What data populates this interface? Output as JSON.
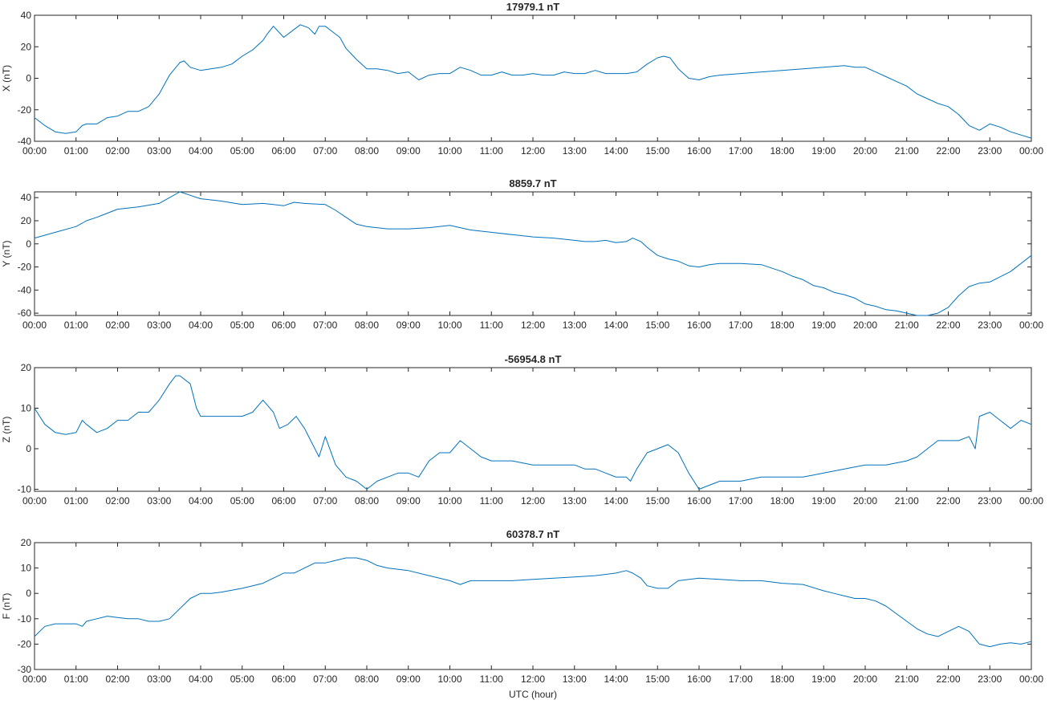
{
  "chart_data": [
    {
      "type": "line",
      "title": "17979.1 nT",
      "ylabel": "X (nT)",
      "xlabel": "",
      "ylim": [
        -40,
        40
      ],
      "yticks": [
        -40,
        -20,
        0,
        20,
        40
      ],
      "xlim": [
        0,
        24
      ],
      "xtick_labels": [
        "00:00",
        "01:00",
        "02:00",
        "03:00",
        "04:00",
        "05:00",
        "06:00",
        "07:00",
        "08:00",
        "09:00",
        "10:00",
        "11:00",
        "12:00",
        "13:00",
        "14:00",
        "15:00",
        "16:00",
        "17:00",
        "18:00",
        "19:00",
        "20:00",
        "21:00",
        "22:00",
        "23:00",
        "00:00"
      ],
      "grid": false,
      "series": [
        {
          "color": "#0072BD",
          "x": [
            0,
            0.25,
            0.5,
            0.75,
            1.0,
            1.15,
            1.25,
            1.5,
            1.75,
            2.0,
            2.25,
            2.5,
            2.75,
            3.0,
            3.25,
            3.5,
            3.6,
            3.75,
            4.0,
            4.25,
            4.5,
            4.75,
            5.0,
            5.25,
            5.5,
            5.6,
            5.75,
            6.0,
            6.25,
            6.4,
            6.6,
            6.75,
            6.85,
            7.0,
            7.15,
            7.35,
            7.5,
            7.75,
            8.0,
            8.25,
            8.5,
            8.75,
            9.0,
            9.25,
            9.5,
            9.75,
            10.0,
            10.25,
            10.5,
            10.75,
            11.0,
            11.25,
            11.5,
            11.75,
            12.0,
            12.25,
            12.5,
            12.75,
            13.0,
            13.25,
            13.5,
            13.75,
            14.0,
            14.25,
            14.5,
            14.75,
            15.0,
            15.15,
            15.3,
            15.5,
            15.75,
            16.0,
            16.25,
            16.5,
            17.0,
            17.5,
            18.0,
            18.5,
            19.0,
            19.5,
            19.75,
            20.0,
            20.25,
            20.5,
            20.75,
            21.0,
            21.25,
            21.5,
            21.75,
            22.0,
            22.25,
            22.5,
            22.75,
            23.0,
            23.25,
            23.5,
            23.75,
            24.0
          ],
          "values": [
            -25,
            -30,
            -34,
            -35,
            -34,
            -30,
            -29,
            -29,
            -25,
            -24,
            -21,
            -21,
            -18,
            -10,
            2,
            10,
            11,
            7,
            5,
            6,
            7,
            9,
            14,
            18,
            24,
            28,
            33,
            26,
            31,
            34,
            32,
            28,
            33,
            33,
            30,
            26,
            19,
            12,
            6,
            6,
            5,
            3,
            4,
            -1,
            2,
            3,
            3,
            7,
            5,
            2,
            2,
            4,
            2,
            2,
            3,
            2,
            2,
            4,
            3,
            3,
            5,
            3,
            3,
            3,
            4,
            9,
            13,
            14,
            13,
            6,
            0,
            -1,
            1,
            2,
            3,
            4,
            5,
            6,
            7,
            8,
            7,
            7,
            4,
            1,
            -2,
            -5,
            -10,
            -13,
            -16,
            -18,
            -23,
            -30,
            -33,
            -29,
            -31,
            -34,
            -36,
            -38
          ]
        }
      ]
    },
    {
      "type": "line",
      "title": "8859.7 nT",
      "ylabel": "Y (nT)",
      "xlabel": "",
      "ylim": [
        -62,
        45
      ],
      "yticks": [
        -60,
        -40,
        -20,
        0,
        20,
        40
      ],
      "xlim": [
        0,
        24
      ],
      "xtick_labels": [
        "00:00",
        "01:00",
        "02:00",
        "03:00",
        "04:00",
        "05:00",
        "06:00",
        "07:00",
        "08:00",
        "09:00",
        "10:00",
        "11:00",
        "12:00",
        "13:00",
        "14:00",
        "15:00",
        "16:00",
        "17:00",
        "18:00",
        "19:00",
        "20:00",
        "21:00",
        "22:00",
        "23:00",
        "00:00"
      ],
      "grid": false,
      "series": [
        {
          "color": "#0072BD",
          "x": [
            0,
            0.5,
            1.0,
            1.25,
            1.5,
            2.0,
            2.5,
            3.0,
            3.25,
            3.5,
            3.75,
            4.0,
            4.5,
            5.0,
            5.5,
            5.75,
            6.0,
            6.25,
            6.5,
            7.0,
            7.25,
            7.5,
            7.75,
            8.0,
            8.5,
            9.0,
            9.5,
            10.0,
            10.25,
            10.5,
            11.0,
            11.5,
            12.0,
            12.5,
            13.0,
            13.25,
            13.5,
            13.75,
            14.0,
            14.25,
            14.4,
            14.6,
            14.75,
            15.0,
            15.25,
            15.5,
            15.75,
            16.0,
            16.25,
            16.5,
            17.0,
            17.5,
            18.0,
            18.25,
            18.5,
            18.75,
            19.0,
            19.25,
            19.5,
            19.75,
            20.0,
            20.25,
            20.5,
            20.75,
            21.0,
            21.25,
            21.5,
            21.75,
            22.0,
            22.25,
            22.5,
            22.75,
            23.0,
            23.5,
            24.0
          ],
          "values": [
            5,
            10,
            15,
            20,
            23,
            30,
            32,
            35,
            40,
            45,
            42,
            39,
            37,
            34,
            35,
            34,
            33,
            36,
            35,
            34,
            29,
            23,
            17,
            15,
            13,
            13,
            14,
            16,
            14,
            12,
            10,
            8,
            6,
            5,
            3,
            2,
            2,
            3,
            1,
            2,
            5,
            2,
            -3,
            -10,
            -13,
            -15,
            -19,
            -20,
            -18,
            -17,
            -17,
            -18,
            -24,
            -28,
            -31,
            -36,
            -38,
            -42,
            -44,
            -47,
            -52,
            -54,
            -57,
            -58,
            -60,
            -62,
            -62,
            -60,
            -55,
            -45,
            -37,
            -34,
            -33,
            -24,
            -10
          ]
        }
      ]
    },
    {
      "type": "line",
      "title": "-56954.8 nT",
      "ylabel": "Z (nT)",
      "xlabel": "",
      "ylim": [
        -10.5,
        20
      ],
      "yticks": [
        -10,
        0,
        10,
        20
      ],
      "xlim": [
        0,
        24
      ],
      "xtick_labels": [
        "00:00",
        "01:00",
        "02:00",
        "03:00",
        "04:00",
        "05:00",
        "06:00",
        "07:00",
        "08:00",
        "09:00",
        "10:00",
        "11:00",
        "12:00",
        "13:00",
        "14:00",
        "15:00",
        "16:00",
        "17:00",
        "18:00",
        "19:00",
        "20:00",
        "21:00",
        "22:00",
        "23:00",
        "00:00"
      ],
      "grid": false,
      "series": [
        {
          "color": "#0072BD",
          "x": [
            0,
            0.25,
            0.5,
            0.75,
            1.0,
            1.15,
            1.25,
            1.5,
            1.75,
            2.0,
            2.25,
            2.5,
            2.75,
            3.0,
            3.25,
            3.4,
            3.5,
            3.75,
            3.9,
            4.0,
            4.5,
            5.0,
            5.25,
            5.5,
            5.75,
            5.9,
            6.1,
            6.3,
            6.5,
            6.75,
            6.85,
            7.0,
            7.25,
            7.5,
            7.75,
            8.0,
            8.25,
            8.5,
            8.75,
            9.0,
            9.25,
            9.5,
            9.75,
            10.0,
            10.25,
            10.5,
            10.75,
            11.0,
            11.5,
            12.0,
            12.5,
            13.0,
            13.25,
            13.5,
            13.75,
            14.0,
            14.25,
            14.35,
            14.5,
            14.75,
            15.0,
            15.25,
            15.5,
            15.75,
            16.0,
            16.25,
            16.5,
            17.0,
            17.5,
            18.0,
            18.5,
            19.0,
            19.5,
            20.0,
            20.5,
            21.0,
            21.25,
            21.5,
            21.75,
            22.0,
            22.25,
            22.5,
            22.65,
            22.75,
            23.0,
            23.25,
            23.5,
            23.75,
            24.0
          ],
          "values": [
            10,
            6,
            4,
            3.5,
            4,
            7,
            6,
            4,
            5,
            7,
            7,
            9,
            9,
            12,
            16,
            18,
            18,
            16,
            10,
            8,
            8,
            8,
            9,
            12,
            9,
            5,
            6,
            8,
            5,
            0,
            -2,
            3,
            -4,
            -7,
            -8,
            -10,
            -8,
            -7,
            -6,
            -6,
            -7,
            -3,
            -1,
            -1,
            2,
            0,
            -2,
            -3,
            -3,
            -4,
            -4,
            -4,
            -5,
            -5,
            -6,
            -7,
            -7,
            -8,
            -5,
            -1,
            0,
            1,
            -1,
            -6,
            -10,
            -9,
            -8,
            -8,
            -7,
            -7,
            -7,
            -6,
            -5,
            -4,
            -4,
            -3,
            -2,
            0,
            2,
            2,
            2,
            3,
            0,
            8,
            9,
            7,
            5,
            7,
            6
          ]
        }
      ]
    },
    {
      "type": "line",
      "title": "60378.7 nT",
      "ylabel": "F (nT)",
      "xlabel": "UTC (hour)",
      "ylim": [
        -30,
        20
      ],
      "yticks": [
        -30,
        -20,
        -10,
        0,
        10,
        20
      ],
      "xlim": [
        0,
        24
      ],
      "xtick_labels": [
        "00:00",
        "01:00",
        "02:00",
        "03:00",
        "04:00",
        "05:00",
        "06:00",
        "07:00",
        "08:00",
        "09:00",
        "10:00",
        "11:00",
        "12:00",
        "13:00",
        "14:00",
        "15:00",
        "16:00",
        "17:00",
        "18:00",
        "19:00",
        "20:00",
        "21:00",
        "22:00",
        "23:00",
        "00:00"
      ],
      "grid": false,
      "series": [
        {
          "color": "#0072BD",
          "x": [
            0,
            0.25,
            0.5,
            0.75,
            1.0,
            1.15,
            1.25,
            1.5,
            1.75,
            2.0,
            2.25,
            2.5,
            2.75,
            3.0,
            3.25,
            3.5,
            3.75,
            4.0,
            4.25,
            4.5,
            5.0,
            5.5,
            6.0,
            6.25,
            6.5,
            6.75,
            7.0,
            7.25,
            7.5,
            7.75,
            8.0,
            8.25,
            8.5,
            9.0,
            9.5,
            10.0,
            10.25,
            10.5,
            11.0,
            11.5,
            12.0,
            12.5,
            13.0,
            13.5,
            14.0,
            14.25,
            14.4,
            14.6,
            14.75,
            15.0,
            15.25,
            15.5,
            16.0,
            16.5,
            17.0,
            17.5,
            18.0,
            18.5,
            19.0,
            19.25,
            19.5,
            19.75,
            20.0,
            20.25,
            20.5,
            20.75,
            21.0,
            21.25,
            21.5,
            21.75,
            22.0,
            22.25,
            22.5,
            22.75,
            23.0,
            23.25,
            23.5,
            23.75,
            24.0
          ],
          "values": [
            -17,
            -13,
            -12,
            -12,
            -12,
            -13,
            -11,
            -10,
            -9,
            -9.5,
            -10,
            -10,
            -11,
            -11,
            -10,
            -6,
            -2,
            0,
            0,
            0.5,
            2,
            4,
            8,
            8,
            10,
            12,
            12,
            13,
            14,
            14,
            13,
            11,
            10,
            9,
            7,
            5,
            3.5,
            5,
            5,
            5,
            5.5,
            6,
            6.5,
            7,
            8,
            9,
            8,
            6,
            3,
            2,
            2,
            5,
            6,
            5.5,
            5,
            5,
            4,
            3.5,
            1,
            0,
            -1,
            -2,
            -2,
            -3,
            -5,
            -8,
            -11,
            -14,
            -16,
            -17,
            -15,
            -13,
            -15,
            -20,
            -21,
            -20,
            -19.5,
            -20,
            -19
          ]
        }
      ]
    }
  ]
}
